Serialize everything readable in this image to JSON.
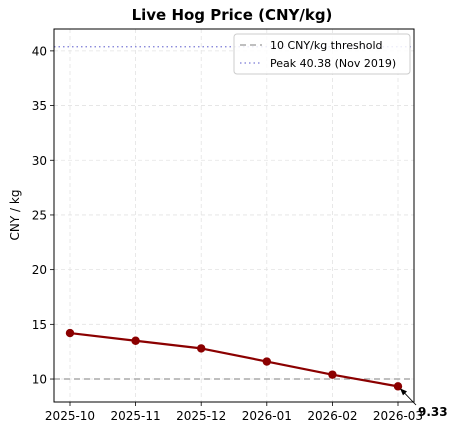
{
  "chart_data": {
    "type": "line",
    "title": "Live Hog Price (CNY/kg)",
    "xlabel": "",
    "ylabel": "CNY / kg",
    "x": [
      "2025-10",
      "2025-11",
      "2025-12",
      "2026-01",
      "2026-02",
      "2026-03"
    ],
    "series": [
      {
        "values": [
          14.2,
          13.5,
          12.8,
          11.6,
          10.4,
          9.33
        ],
        "color": "#8b0000"
      }
    ],
    "ylim": [
      7.9,
      42.0
    ],
    "yticks": [
      10,
      15,
      20,
      25,
      30,
      35,
      40
    ],
    "grid": true,
    "reference_lines": [
      {
        "label": "10 CNY/kg threshold",
        "y": 10,
        "color": "#999999",
        "style": "dashed"
      },
      {
        "label": "Peak 40.38 (Nov 2019)",
        "y": 40.38,
        "color": "#7b7bd6",
        "style": "dotted"
      }
    ],
    "annotation": {
      "text": "9.33",
      "x": "2026-03",
      "y": 9.33
    },
    "legend": {
      "placement": "top-right"
    }
  }
}
